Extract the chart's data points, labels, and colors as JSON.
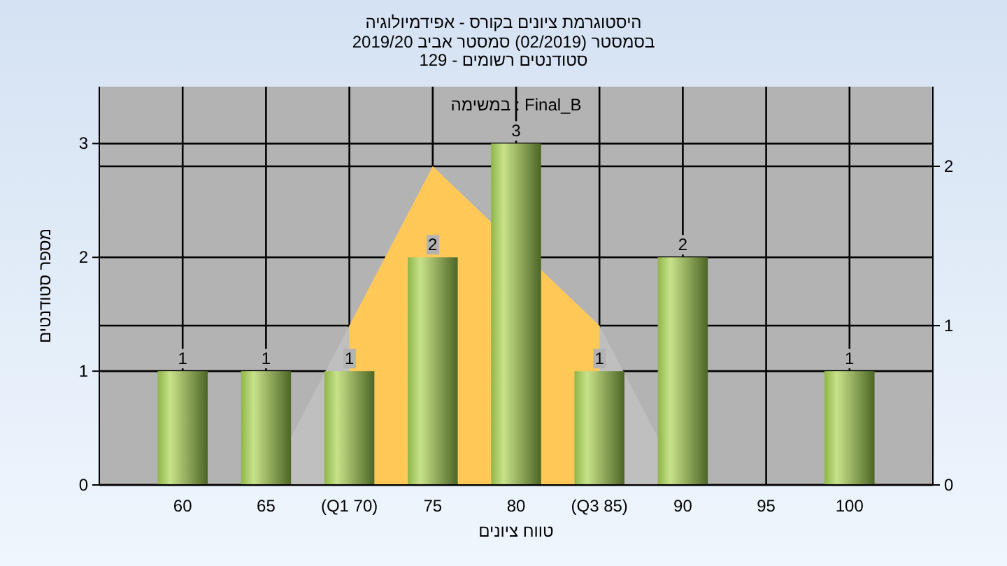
{
  "chart_data": {
    "type": "bar",
    "title": "היסטוגרמת ציונים בקורס - אפידמיולוגיה",
    "subtitle": "בסמסטר (02/2019) סמסטר אביב 2019/20\nסטודנטים רשומים - 129",
    "xlabel": "טווח ציונים",
    "ylabel": "מספר סטודנטים",
    "annotations": [
      "במשימה : Final_B"
    ],
    "categories": [
      "60",
      "65",
      "(Q1 70)",
      "75",
      "80",
      "(Q3 85)",
      "90",
      "95",
      "100"
    ],
    "series": [
      {
        "type": "area",
        "axis": "y2",
        "color": "#bfbfbf",
        "values": [
          null,
          0,
          1,
          2,
          null,
          1,
          0,
          null,
          null
        ]
      },
      {
        "type": "area",
        "axis": "y2",
        "color": "#ffc857",
        "values": [
          null,
          null,
          1,
          2,
          null,
          1,
          null,
          null,
          null
        ]
      },
      {
        "type": "bar",
        "color": "#8fb548",
        "values": [
          1,
          1,
          1,
          2,
          3,
          1,
          2,
          0,
          1
        ],
        "value_labels": [
          "1",
          "1",
          "1",
          "2",
          "3",
          "1",
          "2",
          null,
          "1"
        ]
      }
    ],
    "ylim": [
      0,
      3.5
    ],
    "yticks": [
      0,
      1,
      2,
      3
    ],
    "y2lim": [
      0,
      2.5
    ],
    "y2ticks": [
      0,
      1,
      2
    ],
    "grid": true
  }
}
